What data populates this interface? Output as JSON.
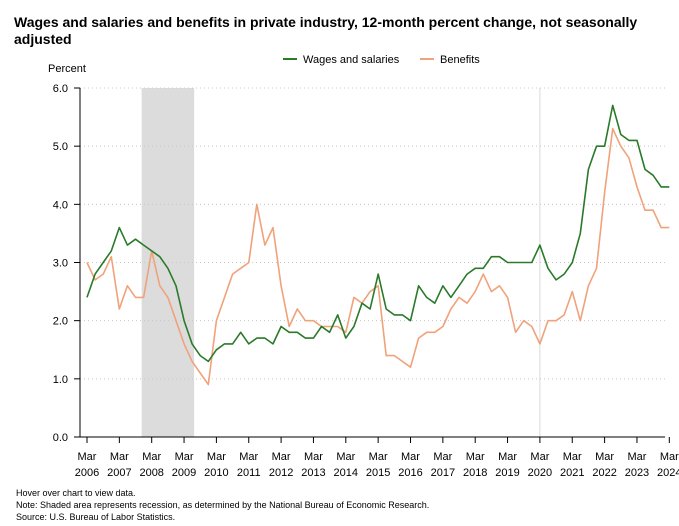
{
  "chart_data": {
    "type": "line",
    "title": "Wages and salaries and benefits in private industry, 12-month percent change, not seasonally adjusted",
    "ylabel": "Percent",
    "xlabel": "",
    "ylim": [
      0,
      6
    ],
    "yticks": [
      "0.0",
      "1.0",
      "2.0",
      "3.0",
      "4.0",
      "5.0",
      "6.0"
    ],
    "xticks": [
      {
        "month": "Mar",
        "year": "2006"
      },
      {
        "month": "Mar",
        "year": "2007"
      },
      {
        "month": "Mar",
        "year": "2008"
      },
      {
        "month": "Mar",
        "year": "2009"
      },
      {
        "month": "Mar",
        "year": "2010"
      },
      {
        "month": "Mar",
        "year": "2011"
      },
      {
        "month": "Mar",
        "year": "2012"
      },
      {
        "month": "Mar",
        "year": "2013"
      },
      {
        "month": "Mar",
        "year": "2014"
      },
      {
        "month": "Mar",
        "year": "2015"
      },
      {
        "month": "Mar",
        "year": "2016"
      },
      {
        "month": "Mar",
        "year": "2017"
      },
      {
        "month": "Mar",
        "year": "2018"
      },
      {
        "month": "Mar",
        "year": "2019"
      },
      {
        "month": "Mar",
        "year": "2020"
      },
      {
        "month": "Mar",
        "year": "2021"
      },
      {
        "month": "Mar",
        "year": "2022"
      },
      {
        "month": "Mar",
        "year": "2023"
      },
      {
        "month": "Mar",
        "year": "2024"
      }
    ],
    "x_start": "Mar 2006",
    "x_step": "quarter",
    "grid": "horizontal dotted",
    "legend_position": "top-center",
    "recession": {
      "from": "Dec 2007",
      "to": "Jun 2009",
      "color": "#dcdcdc"
    },
    "reference_line": {
      "at": "Mar 2020",
      "color": "#d8d8d8"
    },
    "series": [
      {
        "name": "Wages and salaries",
        "color": "#2a7a2a",
        "values": [
          2.4,
          2.8,
          3.0,
          3.2,
          3.6,
          3.3,
          3.4,
          3.3,
          3.2,
          3.1,
          2.9,
          2.6,
          2.0,
          1.6,
          1.4,
          1.3,
          1.5,
          1.6,
          1.6,
          1.8,
          1.6,
          1.7,
          1.7,
          1.6,
          1.9,
          1.8,
          1.8,
          1.7,
          1.7,
          1.9,
          1.8,
          2.1,
          1.7,
          1.9,
          2.3,
          2.2,
          2.8,
          2.2,
          2.1,
          2.1,
          2.0,
          2.6,
          2.4,
          2.3,
          2.6,
          2.4,
          2.6,
          2.8,
          2.9,
          2.9,
          3.1,
          3.1,
          3.0,
          3.0,
          3.0,
          3.0,
          3.3,
          2.9,
          2.7,
          2.8,
          3.0,
          3.5,
          4.6,
          5.0,
          5.0,
          5.7,
          5.2,
          5.1,
          5.1,
          4.6,
          4.5,
          4.3,
          4.3
        ]
      },
      {
        "name": "Benefits",
        "color": "#f0a27a",
        "values": [
          3.0,
          2.7,
          2.8,
          3.1,
          2.2,
          2.6,
          2.4,
          2.4,
          3.2,
          2.6,
          2.4,
          2.0,
          1.6,
          1.3,
          1.1,
          0.9,
          2.0,
          2.4,
          2.8,
          2.9,
          3.0,
          4.0,
          3.3,
          3.6,
          2.6,
          1.9,
          2.2,
          2.0,
          2.0,
          1.9,
          1.9,
          1.9,
          1.8,
          2.4,
          2.3,
          2.5,
          2.6,
          1.4,
          1.4,
          1.3,
          1.2,
          1.7,
          1.8,
          1.8,
          1.9,
          2.2,
          2.4,
          2.3,
          2.5,
          2.8,
          2.5,
          2.6,
          2.4,
          1.8,
          2.0,
          1.9,
          1.6,
          2.0,
          2.0,
          2.1,
          2.5,
          2.0,
          2.6,
          2.9,
          4.2,
          5.3,
          5.0,
          4.8,
          4.3,
          3.9,
          3.9,
          3.6,
          3.6
        ]
      }
    ]
  },
  "notes": {
    "hover": "Hover over chart to view data.",
    "recession_note": "Note: Shaded area represents recession, as determined by the National Bureau of Economic Research.",
    "source": "Source: U.S. Bureau of Labor Statistics."
  }
}
